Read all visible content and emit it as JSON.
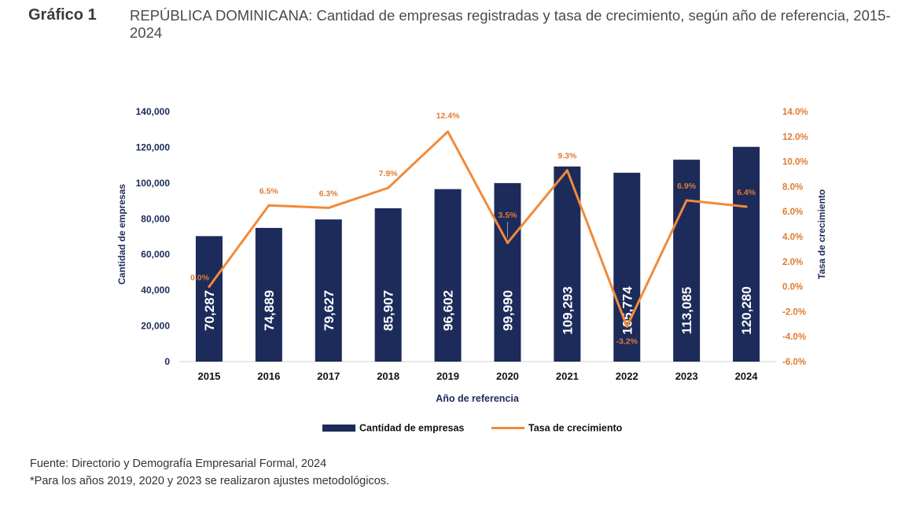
{
  "figure": {
    "label": "Gráfico 1",
    "title": "REPÚBLICA DOMINICANA: Cantidad de empresas registradas y tasa de crecimiento, según año de referencia, 2015-2024"
  },
  "chart_data": {
    "type": "bar",
    "categories": [
      "2015",
      "2016",
      "2017",
      "2018",
      "2019",
      "2020",
      "2021",
      "2022",
      "2023",
      "2024"
    ],
    "series": [
      {
        "name": "Cantidad de empresas",
        "type": "bar",
        "axis": "left",
        "values": [
          70287,
          74889,
          79627,
          85907,
          96602,
          99990,
          109293,
          105774,
          113085,
          120280
        ],
        "labels": [
          "70,287",
          "74,889",
          "79,627",
          "85,907",
          "96,602",
          "99,990",
          "109,293",
          "105,774",
          "113,085",
          "120,280"
        ]
      },
      {
        "name": "Tasa de crecimiento",
        "type": "line",
        "axis": "right",
        "values": [
          0.0,
          6.5,
          6.3,
          7.9,
          12.4,
          3.5,
          9.3,
          -3.2,
          6.9,
          6.4
        ],
        "labels": [
          "0.0%",
          "6.5%",
          "6.3%",
          "7.9%",
          "12.4%",
          "3.5%",
          "9.3%",
          "-3.2%",
          "6.9%",
          "6.4%"
        ]
      }
    ],
    "xlabel": "Año de referencia",
    "ylabel": "Cantidad de empresas",
    "y2label": "Tasa de crecimiento",
    "ylim": [
      0,
      140000
    ],
    "y2lim": [
      -6.0,
      14.0
    ],
    "yticks": [
      0,
      20000,
      40000,
      60000,
      80000,
      100000,
      120000,
      140000
    ],
    "ytick_labels": [
      "0",
      "20,000",
      "40,000",
      "60,000",
      "80,000",
      "100,000",
      "120,000",
      "140,000"
    ],
    "y2ticks": [
      -6,
      -4,
      -2,
      0,
      2,
      4,
      6,
      8,
      10,
      12,
      14
    ],
    "y2tick_labels": [
      "-6.0%",
      "-4.0%",
      "-2.0%",
      "0.0%",
      "2.0%",
      "4.0%",
      "6.0%",
      "8.0%",
      "10.0%",
      "12.0%",
      "14.0%"
    ],
    "grid": false,
    "legend": "bottom-center",
    "colors": {
      "bar": "#1c2b5a",
      "line": "#f28a3a",
      "axis_left": "#1c2b5a",
      "axis_right": "#e07b33",
      "bar_label": "#ffffff"
    }
  },
  "footer": {
    "source": "Fuente: Directorio y Demografía Empresarial Formal, 2024",
    "note": "*Para los años 2019, 2020 y 2023 se realizaron ajustes metodológicos."
  }
}
